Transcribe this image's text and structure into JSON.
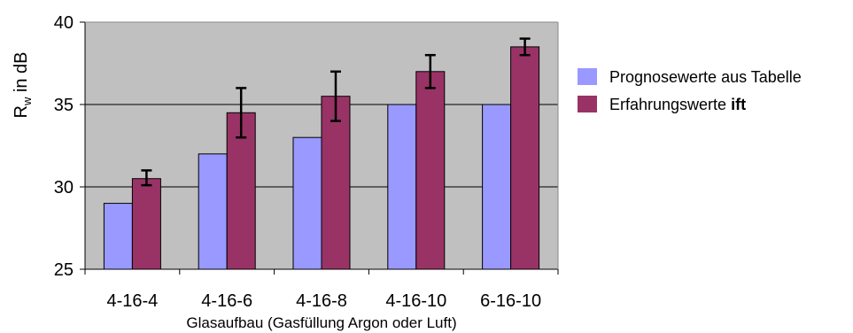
{
  "chart_data": {
    "type": "bar",
    "xlabel": "Glasaufbau (Gasfüllung Argon oder Luft)",
    "ylabel_main": "R",
    "ylabel_sub": "w",
    "ylabel_rest": " in dB",
    "ylim": [
      25,
      40
    ],
    "yticks": [
      "25",
      "30",
      "35",
      "40"
    ],
    "grid": true,
    "legend_position": "right",
    "plot_background": "#c0c0c0",
    "categories": [
      "4-16-4",
      "4-16-6",
      "4-16-8",
      "4-16-10",
      "6-16-10"
    ],
    "series": [
      {
        "name": "Prognosewerte aus Tabelle",
        "color": "#9999ff",
        "values": [
          29,
          32,
          33,
          35,
          35
        ]
      },
      {
        "name_plain": "Erfahrungswerte ",
        "name_bold": "ift",
        "color": "#993366",
        "values": [
          30.5,
          34.5,
          35.5,
          37,
          38.5
        ],
        "error_low": [
          30.1,
          33,
          34,
          36,
          38
        ],
        "error_high": [
          31,
          36,
          37,
          38,
          39
        ]
      }
    ]
  }
}
